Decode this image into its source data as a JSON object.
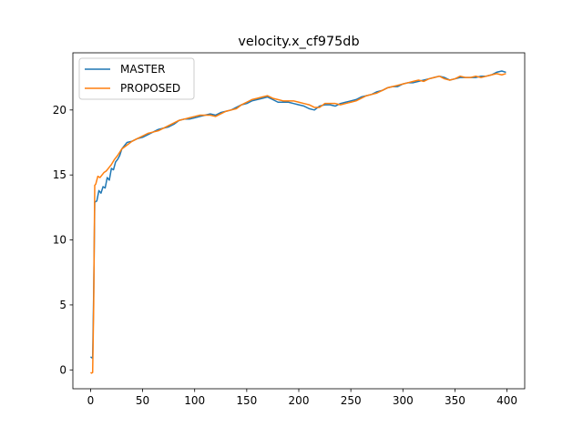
{
  "chart_data": {
    "type": "line",
    "title": "velocity.x_cf975db",
    "xlabel": "",
    "ylabel": "",
    "xlim": [
      -17,
      417
    ],
    "ylim": [
      -1.45,
      24.4
    ],
    "x_ticks": [
      0,
      50,
      100,
      150,
      200,
      250,
      300,
      350,
      400
    ],
    "y_ticks": [
      0,
      5,
      10,
      15,
      20
    ],
    "grid": false,
    "legend_placement": "upper-left",
    "series": [
      {
        "name": "MASTER",
        "color": "#1f77b4",
        "x": [
          0,
          2,
          3,
          4,
          6,
          8,
          10,
          12,
          14,
          16,
          18,
          20,
          22,
          24,
          26,
          28,
          30,
          32,
          35,
          40,
          45,
          50,
          55,
          60,
          65,
          70,
          75,
          80,
          85,
          90,
          95,
          100,
          105,
          110,
          115,
          120,
          125,
          130,
          135,
          140,
          145,
          150,
          155,
          160,
          165,
          170,
          175,
          180,
          185,
          190,
          195,
          200,
          205,
          210,
          215,
          220,
          225,
          230,
          235,
          240,
          245,
          250,
          255,
          260,
          265,
          270,
          275,
          280,
          285,
          290,
          295,
          300,
          305,
          310,
          315,
          320,
          325,
          330,
          335,
          340,
          345,
          350,
          355,
          360,
          365,
          370,
          375,
          380,
          385,
          390,
          395,
          399
        ],
        "y": [
          1.0,
          0.9,
          6.0,
          12.9,
          13.0,
          13.8,
          13.6,
          14.1,
          14.0,
          14.8,
          14.6,
          15.5,
          15.4,
          16.0,
          16.2,
          16.5,
          17.0,
          17.2,
          17.5,
          17.6,
          17.8,
          17.9,
          18.1,
          18.3,
          18.5,
          18.6,
          18.7,
          18.9,
          19.2,
          19.3,
          19.3,
          19.4,
          19.5,
          19.6,
          19.7,
          19.6,
          19.8,
          19.9,
          20.0,
          20.2,
          20.4,
          20.5,
          20.7,
          20.8,
          20.9,
          21.0,
          20.8,
          20.6,
          20.6,
          20.6,
          20.5,
          20.4,
          20.3,
          20.1,
          20.0,
          20.3,
          20.4,
          20.4,
          20.3,
          20.5,
          20.6,
          20.7,
          20.8,
          21.0,
          21.1,
          21.2,
          21.4,
          21.5,
          21.7,
          21.8,
          21.8,
          22.0,
          22.1,
          22.1,
          22.2,
          22.3,
          22.4,
          22.5,
          22.6,
          22.5,
          22.3,
          22.4,
          22.5,
          22.5,
          22.5,
          22.5,
          22.6,
          22.6,
          22.7,
          22.9,
          23.0,
          22.9
        ]
      },
      {
        "name": "PROPOSED",
        "color": "#ff7f0e",
        "x": [
          0,
          1,
          2,
          3,
          4,
          5,
          7,
          9,
          11,
          13,
          15,
          17,
          20,
          23,
          26,
          30,
          35,
          40,
          45,
          50,
          55,
          60,
          65,
          70,
          75,
          80,
          85,
          90,
          95,
          100,
          105,
          110,
          115,
          120,
          125,
          130,
          135,
          140,
          145,
          150,
          155,
          160,
          165,
          170,
          175,
          180,
          185,
          190,
          195,
          200,
          205,
          210,
          215,
          220,
          225,
          230,
          235,
          240,
          245,
          250,
          255,
          260,
          265,
          270,
          275,
          280,
          285,
          290,
          295,
          300,
          305,
          310,
          315,
          320,
          325,
          330,
          335,
          340,
          345,
          350,
          355,
          360,
          365,
          370,
          375,
          380,
          385,
          390,
          395,
          399
        ],
        "y": [
          -0.2,
          -0.25,
          -0.2,
          5.0,
          14.2,
          14.3,
          14.9,
          14.8,
          15.0,
          15.2,
          15.3,
          15.5,
          15.8,
          16.2,
          16.5,
          17.0,
          17.3,
          17.6,
          17.8,
          18.0,
          18.2,
          18.3,
          18.4,
          18.6,
          18.8,
          19.0,
          19.2,
          19.3,
          19.4,
          19.5,
          19.6,
          19.6,
          19.6,
          19.5,
          19.7,
          19.9,
          20.0,
          20.1,
          20.4,
          20.6,
          20.8,
          20.9,
          21.0,
          21.1,
          20.9,
          20.8,
          20.7,
          20.7,
          20.7,
          20.6,
          20.5,
          20.4,
          20.2,
          20.2,
          20.5,
          20.5,
          20.5,
          20.4,
          20.5,
          20.6,
          20.7,
          20.9,
          21.1,
          21.2,
          21.3,
          21.5,
          21.7,
          21.8,
          21.9,
          22.0,
          22.1,
          22.2,
          22.3,
          22.2,
          22.4,
          22.5,
          22.6,
          22.4,
          22.3,
          22.4,
          22.6,
          22.5,
          22.5,
          22.6,
          22.5,
          22.6,
          22.7,
          22.8,
          22.7,
          22.8
        ]
      }
    ]
  }
}
